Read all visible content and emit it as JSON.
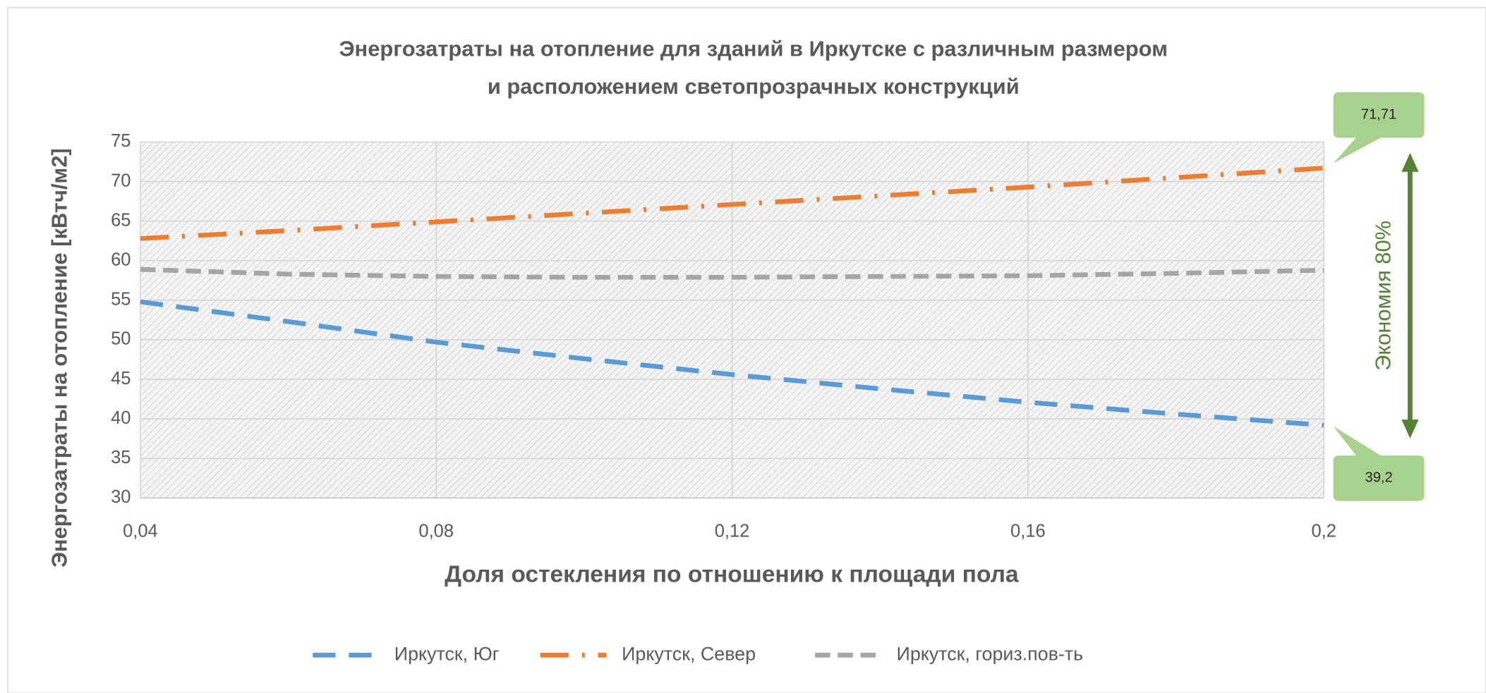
{
  "chart_data": {
    "type": "line",
    "title": [
      "Энергозатраты на отопление для зданий в Иркутске с различным размером",
      "и расположением светопрозрачных конструкций"
    ],
    "x_label": "Доля остекления по отношению к площади пола",
    "y_label": "Энергозатраты на отопление [кВтч/м2]",
    "x": [
      0.04,
      0.06,
      0.08,
      0.1,
      0.12,
      0.14,
      0.16,
      0.18,
      0.2
    ],
    "series": [
      {
        "name": "Иркутск, Юг",
        "color": "#5b9bd5",
        "dash": "24 14",
        "values": [
          54.8,
          52.3,
          49.7,
          47.6,
          45.6,
          43.8,
          42.1,
          40.6,
          39.2
        ],
        "value_labels": [
          null,
          null,
          null,
          null,
          null,
          null,
          null,
          null,
          "39,2"
        ]
      },
      {
        "name": "Иркутск, Север",
        "color": "#ed7d31",
        "dash": "30 14 3 14",
        "values": [
          62.8,
          63.8,
          64.9,
          66.0,
          67.1,
          68.2,
          69.3,
          70.5,
          71.71
        ],
        "value_labels": [
          null,
          null,
          null,
          null,
          null,
          null,
          null,
          null,
          "71,71"
        ]
      },
      {
        "name": "Иркутск, гориз.пов-ть",
        "color": "#a5a5a5",
        "dash": "16 8",
        "values": [
          58.9,
          58.3,
          58.0,
          57.9,
          57.9,
          58.0,
          58.1,
          58.4,
          58.8
        ]
      }
    ],
    "annotation": "Экономия 80%",
    "annotation_color": "#548235",
    "callout_color": "#a9d18e",
    "xlim": [
      0.04,
      0.2
    ],
    "xticks": [
      {
        "value": 0.04,
        "label": "0,04"
      },
      {
        "value": 0.08,
        "label": "0,08"
      },
      {
        "value": 0.12,
        "label": "0,12"
      },
      {
        "value": 0.16,
        "label": "0,16"
      },
      {
        "value": 0.2,
        "label": "0,2"
      }
    ],
    "ylim": [
      30,
      75
    ],
    "yticks": [
      30,
      35,
      40,
      45,
      50,
      55,
      60,
      65,
      70,
      75
    ],
    "grid": true,
    "legend": "bottom"
  }
}
